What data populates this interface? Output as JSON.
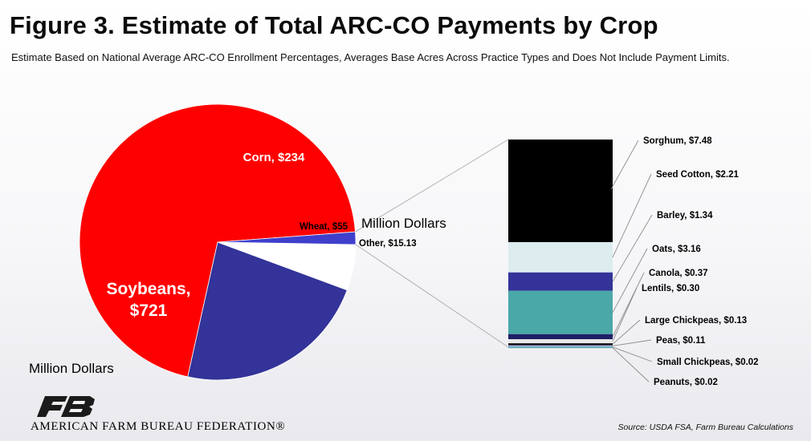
{
  "title": "Figure 3. Estimate of Total ARC-CO Payments by Crop",
  "subtitle": "Estimate Based on National Average ARC-CO Enrollment Percentages, Averages Base Acres Across Practice Types and Does Not Include Payment Limits.",
  "footer": {
    "org_name": "AMERICAN FARM BUREAU FEDERATION®",
    "source": "Source: USDA FSA, Farm Bureau Calculations"
  },
  "chart_data": [
    {
      "type": "pie",
      "units_label": "Million Dollars",
      "units_label_2": "Million Dollars",
      "categories": [
        "Soybeans",
        "Corn",
        "Wheat",
        "Other"
      ],
      "values": [
        721,
        234,
        55,
        15.13
      ],
      "labels": [
        "Soybeans,\n$721",
        "Corn, $234",
        "Wheat, $55",
        "Other, $15.13"
      ],
      "colors": [
        "#ff0000",
        "#333399",
        "#ffffff",
        "#3f3fcc"
      ]
    },
    {
      "type": "bar",
      "stacked": true,
      "breakdown_of": "Other",
      "categories": [
        "Sorghum",
        "Seed Cotton",
        "Barley",
        "Oats",
        "Canola",
        "Lentils",
        "Large Chickpeas",
        "Peas",
        "Small Chickpeas",
        "Peanuts"
      ],
      "values": [
        7.48,
        2.21,
        1.34,
        3.16,
        0.37,
        0.3,
        0.13,
        0.11,
        0.02,
        0.02
      ],
      "labels": [
        "Sorghum, $7.48",
        "Seed Cotton, $2.21",
        "Barley, $1.34",
        "Oats, $3.16",
        "Canola, $0.37",
        "Lentils, $0.30",
        "Large Chickpeas, $0.13",
        "Peas, $0.11",
        "Small Chickpeas, $0.02",
        "Peanuts, $0.02"
      ],
      "colors": [
        "#000000",
        "#dcecef",
        "#333399",
        "#4aa8a8",
        "#1f1f66",
        "#e8e8e8",
        "#000000",
        "#9999cc",
        "#66cccc",
        "#339999"
      ]
    }
  ]
}
